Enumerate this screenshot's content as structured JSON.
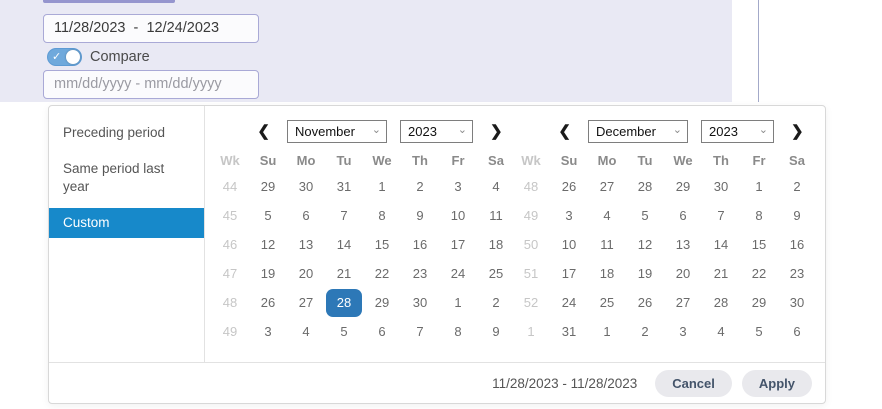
{
  "topbar": {
    "range_value": "11/28/2023  -  12/24/2023",
    "compare_label": "Compare",
    "compare_placeholder": "mm/dd/yyyy - mm/dd/yyyy"
  },
  "presets": {
    "items": [
      {
        "label": "Preceding period",
        "selected": false
      },
      {
        "label": "Same period last year",
        "selected": false
      },
      {
        "label": "Custom",
        "selected": true
      }
    ]
  },
  "calendars": [
    {
      "month": "November",
      "year": "2023",
      "day_headers": [
        "Wk",
        "Su",
        "Mo",
        "Tu",
        "We",
        "Th",
        "Fr",
        "Sa"
      ],
      "weeks": [
        {
          "wk": "44",
          "days": [
            {
              "d": "29",
              "m": 1
            },
            {
              "d": "30",
              "m": 1
            },
            {
              "d": "31",
              "m": 1
            },
            {
              "d": "1"
            },
            {
              "d": "2"
            },
            {
              "d": "3"
            },
            {
              "d": "4"
            }
          ]
        },
        {
          "wk": "45",
          "days": [
            {
              "d": "5"
            },
            {
              "d": "6"
            },
            {
              "d": "7"
            },
            {
              "d": "8"
            },
            {
              "d": "9"
            },
            {
              "d": "10"
            },
            {
              "d": "11"
            }
          ]
        },
        {
          "wk": "46",
          "days": [
            {
              "d": "12"
            },
            {
              "d": "13"
            },
            {
              "d": "14"
            },
            {
              "d": "15"
            },
            {
              "d": "16"
            },
            {
              "d": "17"
            },
            {
              "d": "18"
            }
          ]
        },
        {
          "wk": "47",
          "days": [
            {
              "d": "19"
            },
            {
              "d": "20"
            },
            {
              "d": "21"
            },
            {
              "d": "22"
            },
            {
              "d": "23"
            },
            {
              "d": "24"
            },
            {
              "d": "25"
            }
          ]
        },
        {
          "wk": "48",
          "days": [
            {
              "d": "26"
            },
            {
              "d": "27"
            },
            {
              "d": "28",
              "sel": 1
            },
            {
              "d": "29"
            },
            {
              "d": "30"
            },
            {
              "d": "1",
              "m": 1
            },
            {
              "d": "2",
              "m": 1
            }
          ]
        },
        {
          "wk": "49",
          "days": [
            {
              "d": "3",
              "m": 1
            },
            {
              "d": "4",
              "m": 1
            },
            {
              "d": "5",
              "m": 1
            },
            {
              "d": "6",
              "m": 1
            },
            {
              "d": "7",
              "m": 1
            },
            {
              "d": "8",
              "m": 1
            },
            {
              "d": "9",
              "m": 1
            }
          ]
        }
      ]
    },
    {
      "month": "December",
      "year": "2023",
      "day_headers": [
        "Wk",
        "Su",
        "Mo",
        "Tu",
        "We",
        "Th",
        "Fr",
        "Sa"
      ],
      "weeks": [
        {
          "wk": "48",
          "days": [
            {
              "d": "26",
              "m": 1
            },
            {
              "d": "27",
              "m": 1
            },
            {
              "d": "28",
              "m": 1
            },
            {
              "d": "29",
              "m": 1
            },
            {
              "d": "30",
              "m": 1
            },
            {
              "d": "1"
            },
            {
              "d": "2"
            }
          ]
        },
        {
          "wk": "49",
          "days": [
            {
              "d": "3"
            },
            {
              "d": "4"
            },
            {
              "d": "5"
            },
            {
              "d": "6"
            },
            {
              "d": "7"
            },
            {
              "d": "8"
            },
            {
              "d": "9"
            }
          ]
        },
        {
          "wk": "50",
          "days": [
            {
              "d": "10"
            },
            {
              "d": "11"
            },
            {
              "d": "12"
            },
            {
              "d": "13"
            },
            {
              "d": "14"
            },
            {
              "d": "15"
            },
            {
              "d": "16"
            }
          ]
        },
        {
          "wk": "51",
          "days": [
            {
              "d": "17"
            },
            {
              "d": "18"
            },
            {
              "d": "19"
            },
            {
              "d": "20"
            },
            {
              "d": "21"
            },
            {
              "d": "22"
            },
            {
              "d": "23"
            }
          ]
        },
        {
          "wk": "52",
          "days": [
            {
              "d": "24"
            },
            {
              "d": "25"
            },
            {
              "d": "26"
            },
            {
              "d": "27"
            },
            {
              "d": "28"
            },
            {
              "d": "29"
            },
            {
              "d": "30"
            }
          ]
        },
        {
          "wk": "1",
          "days": [
            {
              "d": "31"
            },
            {
              "d": "1",
              "m": 1
            },
            {
              "d": "2",
              "m": 1
            },
            {
              "d": "3",
              "m": 1
            },
            {
              "d": "4",
              "m": 1
            },
            {
              "d": "5",
              "m": 1
            },
            {
              "d": "6",
              "m": 1
            }
          ]
        }
      ]
    }
  ],
  "footer": {
    "range_text": "11/28/2023 - 11/28/2023",
    "cancel_label": "Cancel",
    "apply_label": "Apply"
  },
  "icons": {
    "prev": "❮",
    "next": "❯",
    "caret": "⌄",
    "check": "✓"
  },
  "colors": {
    "selected_day_blue": "#2d78b7",
    "preset_active_blue": "#1789ca",
    "toggle_blue": "#6fa9dc",
    "lavender_background": "#e9e9f4",
    "button_background": "#e9e9ed",
    "button_text": "#44546a"
  }
}
